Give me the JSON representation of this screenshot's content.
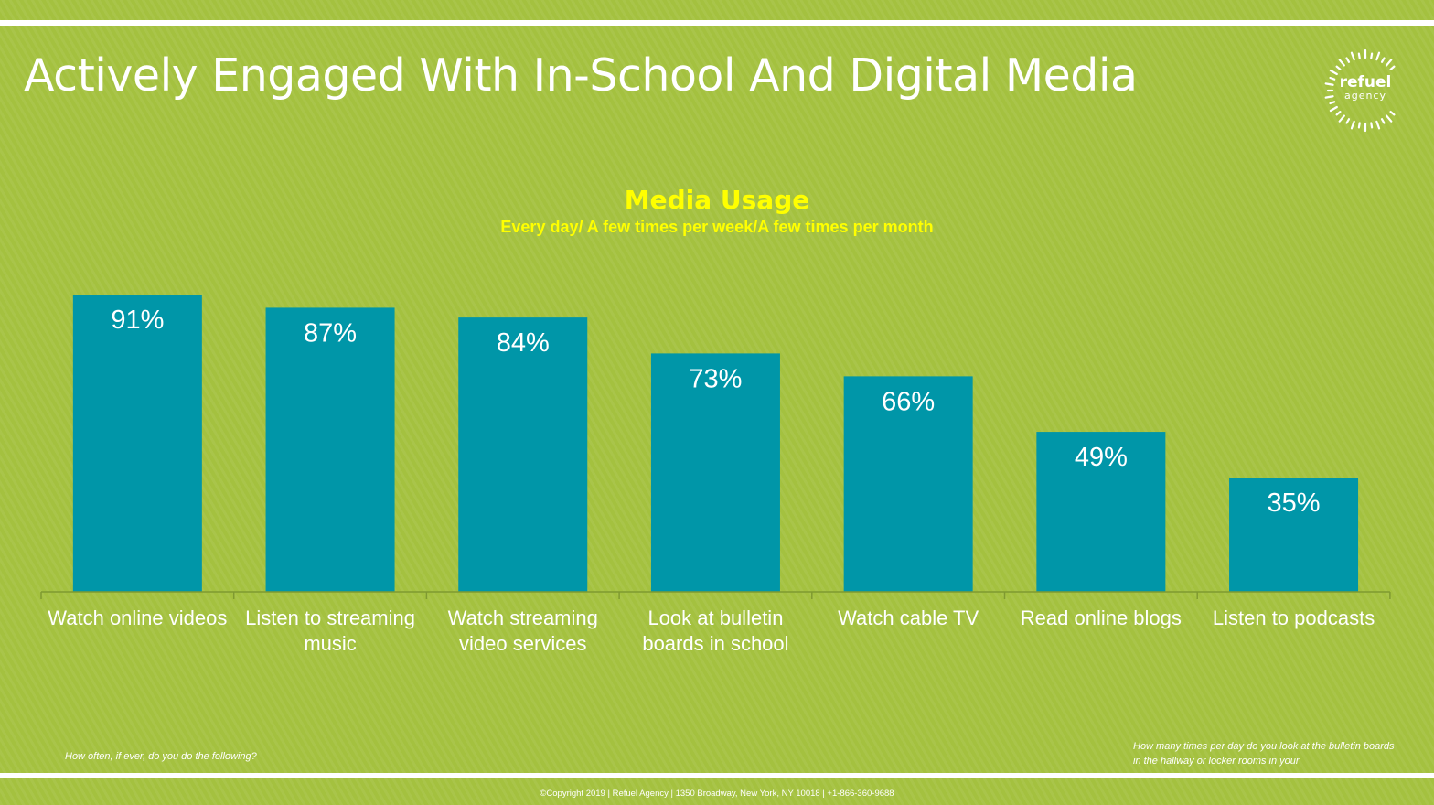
{
  "slide": {
    "title": "Actively Engaged With In-School And Digital Media",
    "logo": {
      "line1": "refuel",
      "line2": "agency"
    },
    "note_left": "How often, if ever, do you do the following?",
    "note_right": "How many times per day do you look at the bulletin boards in the hallway or locker rooms in your",
    "footer": "©Copyright 2019 | Refuel Agency | 1350 Broadway, New York, NY  10018 | +1-866-360-9688"
  },
  "colors": {
    "background": "#a4c13f",
    "bar": "#0096a8",
    "title_accent": "#ffff00"
  },
  "chart_data": {
    "type": "bar",
    "title": "Media Usage",
    "subtitle": "Every day/ A few times per week/A few times per month",
    "categories": [
      "Watch online videos",
      "Listen to streaming music",
      "Watch streaming video services",
      "Look at bulletin boards in school",
      "Watch cable TV",
      "Read online blogs",
      "Listen to podcasts"
    ],
    "values": [
      91,
      87,
      84,
      73,
      66,
      49,
      35
    ],
    "data_labels": [
      "91%",
      "87%",
      "84%",
      "73%",
      "66%",
      "49%",
      "35%"
    ],
    "ylim": [
      0,
      100
    ],
    "grid": false,
    "legend": "none"
  }
}
